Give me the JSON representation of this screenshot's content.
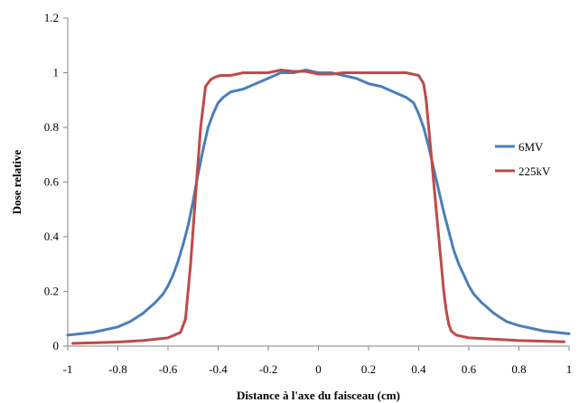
{
  "chart_data": {
    "type": "line",
    "title": "",
    "xlabel": "Distance à l'axe du faisceau (cm)",
    "ylabel": "Dose relative",
    "xlim": [
      -1,
      1
    ],
    "ylim": [
      0,
      1.2
    ],
    "xticks": [
      "-1",
      "-0.8",
      "-0.6",
      "-0.4",
      "-0.2",
      "0",
      "0.2",
      "0.4",
      "0.6",
      "0.8",
      "1"
    ],
    "yticks": [
      "0",
      "0.2",
      "0.4",
      "0.6",
      "0.8",
      "1",
      "1.2"
    ],
    "grid": false,
    "legend_position": "right",
    "series": [
      {
        "name": "6MV",
        "color": "#4a7ebb",
        "x": [
          -1.0,
          -0.9,
          -0.8,
          -0.75,
          -0.7,
          -0.65,
          -0.62,
          -0.6,
          -0.58,
          -0.56,
          -0.54,
          -0.52,
          -0.5,
          -0.48,
          -0.46,
          -0.44,
          -0.42,
          -0.4,
          -0.38,
          -0.35,
          -0.3,
          -0.25,
          -0.2,
          -0.15,
          -0.1,
          -0.05,
          0.0,
          0.05,
          0.1,
          0.15,
          0.2,
          0.25,
          0.3,
          0.35,
          0.38,
          0.4,
          0.42,
          0.44,
          0.46,
          0.48,
          0.5,
          0.52,
          0.54,
          0.56,
          0.58,
          0.6,
          0.62,
          0.65,
          0.7,
          0.75,
          0.8,
          0.9,
          1.0
        ],
        "y": [
          0.04,
          0.05,
          0.07,
          0.09,
          0.12,
          0.16,
          0.19,
          0.22,
          0.26,
          0.31,
          0.37,
          0.44,
          0.53,
          0.63,
          0.72,
          0.8,
          0.85,
          0.89,
          0.91,
          0.93,
          0.94,
          0.96,
          0.98,
          1.0,
          1.0,
          1.01,
          1.0,
          1.0,
          0.99,
          0.98,
          0.96,
          0.95,
          0.93,
          0.91,
          0.89,
          0.85,
          0.8,
          0.73,
          0.65,
          0.57,
          0.49,
          0.42,
          0.35,
          0.3,
          0.26,
          0.22,
          0.19,
          0.16,
          0.12,
          0.09,
          0.075,
          0.055,
          0.045
        ]
      },
      {
        "name": "225kV",
        "color": "#be4b48",
        "x": [
          -0.98,
          -0.9,
          -0.8,
          -0.7,
          -0.6,
          -0.55,
          -0.53,
          -0.51,
          -0.49,
          -0.47,
          -0.45,
          -0.43,
          -0.41,
          -0.39,
          -0.35,
          -0.3,
          -0.25,
          -0.2,
          -0.15,
          -0.1,
          -0.05,
          0.0,
          0.05,
          0.1,
          0.15,
          0.2,
          0.25,
          0.3,
          0.35,
          0.4,
          0.42,
          0.43,
          0.44,
          0.45,
          0.46,
          0.47,
          0.48,
          0.49,
          0.5,
          0.51,
          0.52,
          0.53,
          0.55,
          0.6,
          0.7,
          0.8,
          0.9,
          0.98
        ],
        "y": [
          0.01,
          0.012,
          0.015,
          0.02,
          0.03,
          0.05,
          0.1,
          0.3,
          0.55,
          0.8,
          0.95,
          0.975,
          0.985,
          0.99,
          0.99,
          1.0,
          1.0,
          1.0,
          1.01,
          1.005,
          1.005,
          0.995,
          0.995,
          1.0,
          1.0,
          1.0,
          1.0,
          1.0,
          1.0,
          0.99,
          0.96,
          0.9,
          0.8,
          0.7,
          0.6,
          0.5,
          0.4,
          0.3,
          0.2,
          0.13,
          0.08,
          0.055,
          0.04,
          0.03,
          0.025,
          0.02,
          0.018,
          0.016
        ]
      }
    ]
  }
}
